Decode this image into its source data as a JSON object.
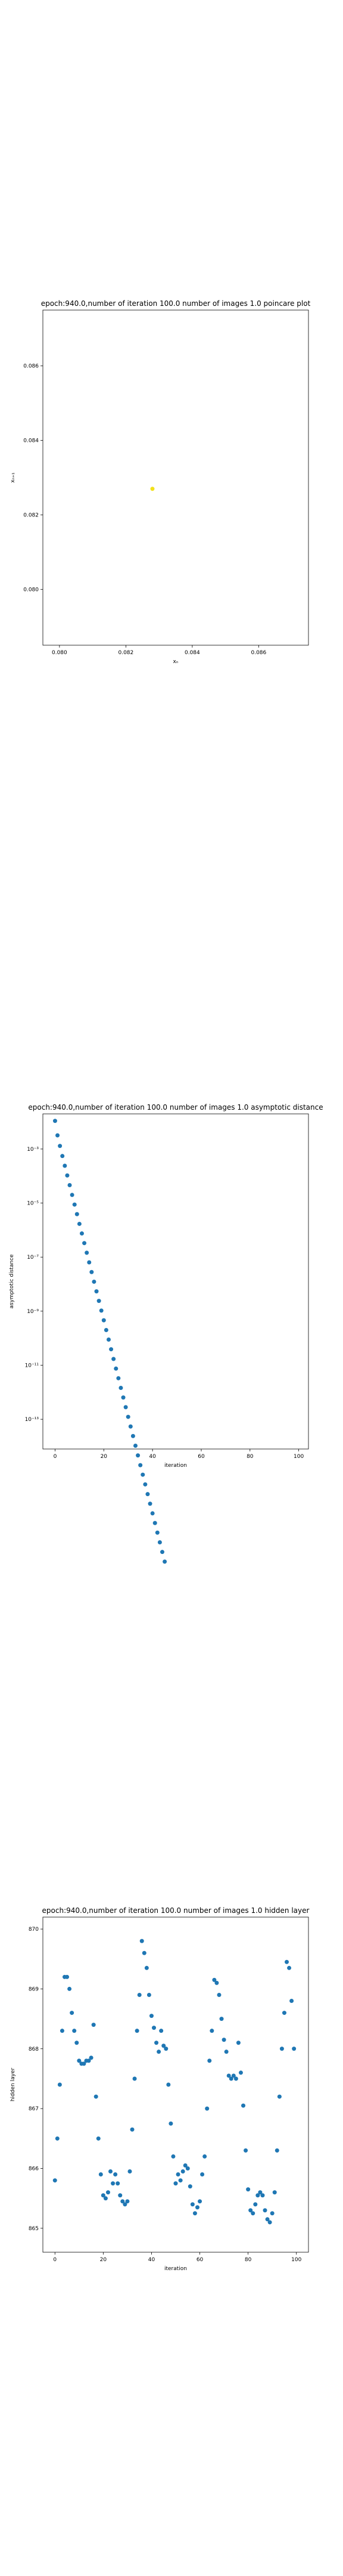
{
  "chart_data": [
    {
      "type": "scatter",
      "title": "epoch:940.0,number of iteration 100.0 number of images 1.0 poincare plot",
      "xlabel": "xₙ",
      "ylabel": "xₙ₊₁",
      "xlim": [
        0.0795,
        0.0875
      ],
      "ylim": [
        0.0785,
        0.0875
      ],
      "xticks": [
        0.08,
        0.082,
        0.084,
        0.086
      ],
      "xtick_labels": [
        "0.080",
        "0.082",
        "0.084",
        "0.086"
      ],
      "yticks": [
        0.08,
        0.082,
        0.084,
        0.086
      ],
      "ytick_labels": [
        "0.080",
        "0.082",
        "0.084",
        "0.086"
      ],
      "grid": false,
      "color": "#f2e11b",
      "x": [
        0.0828
      ],
      "y": [
        0.0827
      ]
    },
    {
      "type": "scatter",
      "title": "epoch:940.0,number of iteration 100.0  number of images 1.0 asymptotic distance",
      "xlabel": "iteration",
      "ylabel": "asymptotic distance",
      "yscale": "log",
      "xlim": [
        -5,
        104
      ],
      "ylim_exp": [
        -14.1,
        -1.7
      ],
      "xticks": [
        0,
        20,
        40,
        60,
        80,
        100
      ],
      "xtick_labels": [
        "0",
        "20",
        "40",
        "60",
        "80",
        "100"
      ],
      "yticks_exp": [
        -13,
        -11,
        -9,
        -7,
        -5,
        -3
      ],
      "ytick_labels": [
        "10⁻¹³",
        "10⁻¹¹",
        "10⁻⁹",
        "10⁻⁷",
        "10⁻⁵",
        "10⁻³"
      ],
      "grid": false,
      "color": "#1f77b4",
      "x": [
        0,
        1,
        2,
        3,
        4,
        5,
        6,
        7,
        8,
        9,
        10,
        11,
        12,
        13,
        14,
        15,
        16,
        17,
        18,
        19,
        20,
        21,
        22,
        23,
        24,
        25,
        26,
        27,
        28,
        29,
        30,
        31,
        32,
        33,
        34,
        35,
        36,
        37,
        38,
        39,
        40,
        41,
        42,
        43,
        44,
        45
      ],
      "y": [
        "1.1e-2",
        "3.2e-3",
        "1.3e-3",
        "5.5e-4",
        "2.4e-4",
        "1.05e-4",
        "4.6e-5",
        "2.0e-5",
        "8.8e-6",
        "3.9e-6",
        "1.7e-6",
        "7.5e-7",
        "3.3e-7",
        "1.45e-7",
        "6.4e-8",
        "2.8e-8",
        "1.23e-8",
        "5.4e-9",
        "2.4e-9",
        "1.05e-9",
        "4.6e-10",
        "2.0e-10",
        "8.9e-11",
        "3.9e-11",
        "1.7e-11",
        "7.5e-12",
        "3.3e-12",
        "1.45e-12",
        "6.4e-13",
        "2.8e-13",
        "1.23e-13",
        "5.4e-14",
        "2.4e-14",
        "1.05e-14",
        "4.6e-15",
        "2.0e-15",
        "8.9e-16",
        "3.9e-16",
        "1.7e-16",
        "7.5e-17",
        "3.3e-17",
        "1.45e-17",
        "6.4e-18",
        "2.8e-18",
        "1.23e-18",
        "5.4e-19"
      ]
    },
    {
      "type": "scatter",
      "title": "epoch:940.0,number of iteration 100.0  number of images 1.0 hidden layer",
      "xlabel": "iteration",
      "ylabel": "hidden layer",
      "xlim": [
        -5,
        105
      ],
      "ylim": [
        864.6,
        870.2
      ],
      "xticks": [
        0,
        20,
        40,
        60,
        80,
        100
      ],
      "xtick_labels": [
        "0",
        "20",
        "40",
        "60",
        "80",
        "100"
      ],
      "yticks": [
        865,
        866,
        867,
        868,
        869,
        870
      ],
      "ytick_labels": [
        "865",
        "866",
        "867",
        "868",
        "869",
        "870"
      ],
      "grid": false,
      "color": "#1f77b4",
      "x": [
        0,
        1,
        2,
        3,
        4,
        5,
        6,
        7,
        8,
        9,
        10,
        11,
        12,
        13,
        14,
        15,
        16,
        17,
        18,
        19,
        20,
        21,
        22,
        23,
        24,
        25,
        26,
        27,
        28,
        29,
        30,
        31,
        32,
        33,
        34,
        35,
        36,
        37,
        38,
        39,
        40,
        41,
        42,
        43,
        44,
        45,
        46,
        47,
        48,
        49,
        50,
        51,
        52,
        53,
        54,
        55,
        56,
        57,
        58,
        59,
        60,
        61,
        62,
        63,
        64,
        65,
        66,
        67,
        68,
        69,
        70,
        71,
        72,
        73,
        74,
        75,
        76,
        77,
        78,
        79,
        80,
        81,
        82,
        83,
        84,
        85,
        86,
        87,
        88,
        89,
        90,
        91,
        92,
        93,
        94,
        95,
        96,
        97,
        98,
        99
      ],
      "y": [
        865.8,
        866.5,
        867.4,
        868.3,
        869.2,
        869.2,
        869.0,
        868.6,
        868.3,
        868.1,
        867.8,
        867.75,
        867.75,
        867.8,
        867.8,
        867.85,
        868.4,
        867.2,
        866.5,
        865.9,
        865.55,
        865.5,
        865.6,
        865.95,
        865.75,
        865.9,
        865.75,
        865.55,
        865.45,
        865.4,
        865.45,
        865.95,
        866.65,
        867.5,
        868.3,
        868.9,
        869.8,
        869.6,
        869.35,
        868.9,
        868.55,
        868.35,
        868.1,
        867.95,
        868.3,
        868.05,
        868.0,
        867.4,
        866.75,
        866.2,
        865.75,
        865.9,
        865.8,
        865.95,
        866.05,
        866.0,
        865.7,
        865.4,
        865.25,
        865.35,
        865.45,
        865.9,
        866.2,
        867.0,
        867.8,
        868.3,
        869.15,
        869.1,
        868.9,
        868.5,
        868.15,
        867.95,
        867.55,
        867.5,
        867.55,
        867.5,
        868.1,
        867.6,
        867.05,
        866.3,
        865.65,
        865.3,
        865.25,
        865.4,
        865.55,
        865.6,
        865.55,
        865.3,
        865.15,
        865.1,
        865.25,
        865.6,
        866.3,
        867.2,
        868.0,
        868.6,
        869.45,
        869.35,
        868.8,
        868.0
      ]
    }
  ]
}
